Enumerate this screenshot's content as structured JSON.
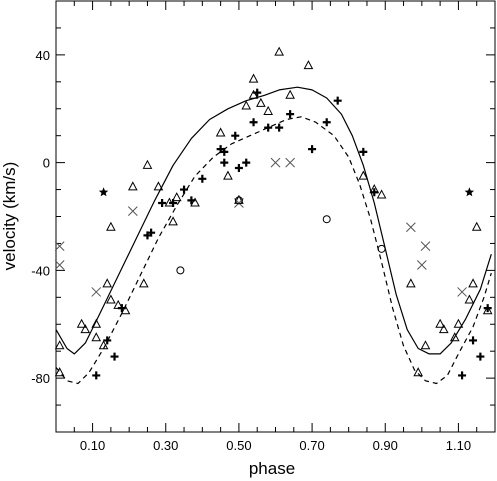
{
  "chart_data": {
    "type": "scatter",
    "title": "",
    "xlabel": "phase",
    "ylabel": "velocity (km/s)",
    "xlim": [
      0.0,
      1.2
    ],
    "ylim": [
      -100,
      60
    ],
    "x_ticks": [
      0.1,
      0.3,
      0.5,
      0.7,
      0.9,
      1.1
    ],
    "x_tick_labels": [
      "0.10",
      "0.30",
      "0.50",
      "0.70",
      "0.90",
      "1.10"
    ],
    "y_ticks": [
      -80,
      -40,
      0,
      40
    ],
    "y_tick_labels": [
      "-80",
      "-40",
      "0",
      "40"
    ],
    "grid": false,
    "legend": "none",
    "series": [
      {
        "marker": "triangle-open",
        "points": [
          [
            0.01,
            -68
          ],
          [
            0.01,
            -78
          ],
          [
            0.07,
            -60
          ],
          [
            0.08,
            -62
          ],
          [
            0.11,
            -65
          ],
          [
            0.11,
            -60
          ],
          [
            0.13,
            -68
          ],
          [
            0.14,
            -45
          ],
          [
            0.15,
            -24
          ],
          [
            0.15,
            -51
          ],
          [
            0.17,
            -53
          ],
          [
            0.19,
            -55
          ],
          [
            0.21,
            -9
          ],
          [
            0.24,
            -45
          ],
          [
            0.25,
            -1
          ],
          [
            0.28,
            -9
          ],
          [
            0.31,
            -15
          ],
          [
            0.32,
            -22
          ],
          [
            0.33,
            -13
          ],
          [
            0.38,
            -15
          ],
          [
            0.45,
            11
          ],
          [
            0.47,
            -5
          ],
          [
            0.5,
            -14
          ],
          [
            0.52,
            21
          ],
          [
            0.54,
            31
          ],
          [
            0.54,
            25
          ],
          [
            0.56,
            22
          ],
          [
            0.58,
            19
          ],
          [
            0.61,
            41
          ],
          [
            0.64,
            25
          ],
          [
            0.69,
            36
          ],
          [
            0.84,
            -5
          ],
          [
            0.87,
            -10
          ],
          [
            0.89,
            -12
          ],
          [
            0.97,
            -45
          ],
          [
            0.99,
            -78
          ],
          [
            1.01,
            -68
          ],
          [
            1.05,
            -60
          ],
          [
            1.06,
            -62
          ],
          [
            1.09,
            -65
          ],
          [
            1.1,
            -60
          ],
          [
            1.13,
            -51
          ],
          [
            1.14,
            -45
          ],
          [
            1.15,
            -24
          ],
          [
            1.18,
            -55
          ]
        ]
      },
      {
        "marker": "plus-bold",
        "points": [
          [
            0.11,
            -79
          ],
          [
            0.14,
            -66
          ],
          [
            0.16,
            -72
          ],
          [
            0.18,
            -54
          ],
          [
            0.25,
            -27
          ],
          [
            0.26,
            -26
          ],
          [
            0.29,
            -15
          ],
          [
            0.32,
            -15
          ],
          [
            0.35,
            -10
          ],
          [
            0.37,
            -14
          ],
          [
            0.4,
            -6
          ],
          [
            0.45,
            5
          ],
          [
            0.46,
            4
          ],
          [
            0.46,
            0
          ],
          [
            0.49,
            10
          ],
          [
            0.5,
            -2
          ],
          [
            0.52,
            0
          ],
          [
            0.54,
            15
          ],
          [
            0.55,
            26
          ],
          [
            0.58,
            13
          ],
          [
            0.61,
            13
          ],
          [
            0.64,
            18
          ],
          [
            0.7,
            5
          ],
          [
            0.74,
            15
          ],
          [
            0.77,
            23
          ],
          [
            0.84,
            4
          ],
          [
            0.87,
            -11
          ],
          [
            1.11,
            -79
          ],
          [
            1.14,
            -66
          ],
          [
            1.16,
            -72
          ],
          [
            1.18,
            -54
          ]
        ]
      },
      {
        "marker": "star",
        "points": [
          [
            0.13,
            -11
          ],
          [
            1.13,
            -11
          ]
        ]
      },
      {
        "marker": "cross",
        "points": [
          [
            0.01,
            -31
          ],
          [
            0.01,
            -38
          ],
          [
            0.11,
            -48
          ],
          [
            0.21,
            -18
          ],
          [
            0.5,
            -15
          ],
          [
            0.6,
            0
          ],
          [
            0.64,
            0
          ],
          [
            0.97,
            -24
          ],
          [
            1.0,
            -38
          ],
          [
            1.01,
            -31
          ],
          [
            1.11,
            -48
          ]
        ]
      },
      {
        "marker": "circle-open",
        "points": [
          [
            0.34,
            -40
          ],
          [
            0.5,
            -14
          ],
          [
            0.74,
            -21
          ],
          [
            0.89,
            -32
          ]
        ]
      },
      {
        "line": "solid",
        "curve": [
          [
            0.0,
            -62
          ],
          [
            0.03,
            -69
          ],
          [
            0.05,
            -71
          ],
          [
            0.08,
            -67
          ],
          [
            0.12,
            -56
          ],
          [
            0.17,
            -42
          ],
          [
            0.22,
            -28
          ],
          [
            0.27,
            -14
          ],
          [
            0.32,
            -1
          ],
          [
            0.37,
            9
          ],
          [
            0.42,
            16
          ],
          [
            0.47,
            20
          ],
          [
            0.52,
            23
          ],
          [
            0.57,
            25
          ],
          [
            0.61,
            27
          ],
          [
            0.66,
            28
          ],
          [
            0.7,
            27
          ],
          [
            0.74,
            24
          ],
          [
            0.78,
            18
          ],
          [
            0.81,
            10
          ],
          [
            0.84,
            -1
          ],
          [
            0.87,
            -15
          ],
          [
            0.9,
            -32
          ],
          [
            0.93,
            -49
          ],
          [
            0.96,
            -62
          ],
          [
            0.99,
            -69
          ],
          [
            1.02,
            -71
          ],
          [
            1.05,
            -71
          ],
          [
            1.08,
            -67
          ],
          [
            1.12,
            -58
          ],
          [
            1.16,
            -47
          ],
          [
            1.19,
            -34
          ]
        ]
      },
      {
        "line": "dashed",
        "curve": [
          [
            0.0,
            -76
          ],
          [
            0.03,
            -81
          ],
          [
            0.06,
            -82
          ],
          [
            0.09,
            -78
          ],
          [
            0.13,
            -69
          ],
          [
            0.18,
            -56
          ],
          [
            0.23,
            -42
          ],
          [
            0.28,
            -28
          ],
          [
            0.33,
            -16
          ],
          [
            0.38,
            -5
          ],
          [
            0.43,
            2
          ],
          [
            0.48,
            7
          ],
          [
            0.53,
            10
          ],
          [
            0.58,
            13
          ],
          [
            0.63,
            16
          ],
          [
            0.67,
            17
          ],
          [
            0.71,
            15
          ],
          [
            0.76,
            10
          ],
          [
            0.8,
            2
          ],
          [
            0.83,
            -8
          ],
          [
            0.86,
            -21
          ],
          [
            0.89,
            -37
          ],
          [
            0.92,
            -54
          ],
          [
            0.95,
            -68
          ],
          [
            0.98,
            -77
          ],
          [
            1.01,
            -81
          ],
          [
            1.04,
            -82
          ],
          [
            1.07,
            -79
          ],
          [
            1.1,
            -71
          ],
          [
            1.14,
            -61
          ],
          [
            1.17,
            -50
          ],
          [
            1.19,
            -41
          ]
        ]
      }
    ]
  }
}
